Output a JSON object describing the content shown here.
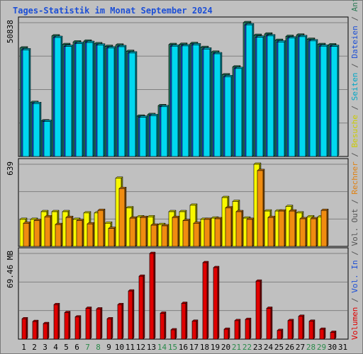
{
  "title": "Tages-Statistik im Monat September 2024",
  "right_legend": [
    {
      "text": "Anfragen",
      "color": "#2a7a55"
    },
    {
      "text": " / ",
      "color": "#555555"
    },
    {
      "text": "Dateien",
      "color": "#1c4fd6"
    },
    {
      "text": " / ",
      "color": "#555555"
    },
    {
      "text": "Seiten",
      "color": "#00a7c6"
    },
    {
      "text": " / ",
      "color": "#555555"
    },
    {
      "text": "Besuche",
      "color": "#cccc00"
    },
    {
      "text": " / ",
      "color": "#555555"
    },
    {
      "text": "Rechner",
      "color": "#e08010"
    },
    {
      "text": " / ",
      "color": "#555555"
    },
    {
      "text": "Vol. Out",
      "color": "#555555"
    },
    {
      "text": " / ",
      "color": "#555555"
    },
    {
      "text": "Vol. In",
      "color": "#1c4fd6"
    },
    {
      "text": " / ",
      "color": "#555555"
    },
    {
      "text": "Volumen",
      "color": "#e00000"
    }
  ],
  "chart_data": [
    {
      "type": "bar",
      "panel": "top",
      "ymax_label": "50838",
      "ymax": 50838,
      "categories": [
        "1",
        "2",
        "3",
        "4",
        "5",
        "6",
        "7",
        "8",
        "9",
        "10",
        "11",
        "12",
        "13",
        "14",
        "15",
        "16",
        "17",
        "18",
        "19",
        "20",
        "21",
        "22",
        "23",
        "24",
        "25",
        "26",
        "27",
        "28",
        "29",
        "30",
        "31"
      ],
      "series": [
        {
          "name": "Anfragen",
          "color": "#2a8a6a",
          "values": [
            41200,
            20500,
            13500,
            45800,
            42500,
            43500,
            43800,
            42800,
            41800,
            42300,
            39900,
            15300,
            15900,
            19300,
            42500,
            42600,
            42900,
            41400,
            39600,
            31000,
            34000,
            50838,
            46000,
            46500,
            44100,
            45600,
            46100,
            44500,
            42500,
            42400,
            0
          ]
        },
        {
          "name": "Dateien",
          "color": "#1c4fd6",
          "values": [
            40500,
            20100,
            13300,
            45200,
            41800,
            42900,
            43300,
            42300,
            41200,
            41700,
            39300,
            14900,
            15500,
            18900,
            41900,
            42000,
            42400,
            40800,
            39000,
            30300,
            33400,
            50000,
            45300,
            45800,
            43500,
            45000,
            45500,
            43900,
            41900,
            41800,
            0
          ]
        },
        {
          "name": "Seiten",
          "color": "#00d8f0",
          "values": [
            40500,
            20100,
            13300,
            45200,
            41800,
            42900,
            43300,
            42300,
            41200,
            41700,
            39300,
            14900,
            15500,
            18900,
            41900,
            42000,
            42400,
            40800,
            39000,
            30300,
            33400,
            50000,
            45300,
            45800,
            43500,
            45000,
            45500,
            43900,
            41900,
            41800,
            0
          ]
        }
      ]
    },
    {
      "type": "bar",
      "panel": "middle",
      "ymax_label": "639",
      "ymax": 639,
      "categories": [
        "1",
        "2",
        "3",
        "4",
        "5",
        "6",
        "7",
        "8",
        "9",
        "10",
        "11",
        "12",
        "13",
        "14",
        "15",
        "16",
        "17",
        "18",
        "19",
        "20",
        "21",
        "22",
        "23",
        "24",
        "25",
        "26",
        "27",
        "28",
        "29",
        "30",
        "31"
      ],
      "series": [
        {
          "name": "Besuche",
          "color": "#f8f800",
          "values": [
            210,
            210,
            270,
            270,
            270,
            210,
            260,
            260,
            180,
            530,
            300,
            230,
            230,
            170,
            270,
            270,
            320,
            210,
            220,
            380,
            350,
            220,
            639,
            275,
            275,
            310,
            260,
            230,
            230,
            0,
            0
          ]
        },
        {
          "name": "Rechner",
          "color": "#f08c10",
          "values": [
            180,
            200,
            230,
            170,
            225,
            200,
            175,
            280,
            140,
            450,
            220,
            225,
            165,
            160,
            225,
            200,
            180,
            210,
            215,
            300,
            270,
            210,
            590,
            225,
            275,
            275,
            215,
            215,
            280,
            0,
            0
          ]
        }
      ]
    },
    {
      "type": "bar",
      "panel": "bottom",
      "ymax_label": "69.46 MB",
      "ymax": 69.46,
      "categories": [
        "1",
        "2",
        "3",
        "4",
        "5",
        "6",
        "7",
        "8",
        "9",
        "10",
        "11",
        "12",
        "13",
        "14",
        "15",
        "16",
        "17",
        "18",
        "19",
        "20",
        "21",
        "22",
        "23",
        "24",
        "25",
        "26",
        "27",
        "28",
        "29",
        "30",
        "31"
      ],
      "series": [
        {
          "name": "Volumen",
          "color": "#e00000",
          "values": [
            16.5,
            14.3,
            12.6,
            28.0,
            21.5,
            18.0,
            25.0,
            24.5,
            16.5,
            28.0,
            39.0,
            51.0,
            69.46,
            21.0,
            7.5,
            29.0,
            14.5,
            62.0,
            58.0,
            8.0,
            15.0,
            16.0,
            47.0,
            25.0,
            7.0,
            15.0,
            18.5,
            14.5,
            8.0,
            5.5,
            0
          ]
        }
      ]
    }
  ]
}
